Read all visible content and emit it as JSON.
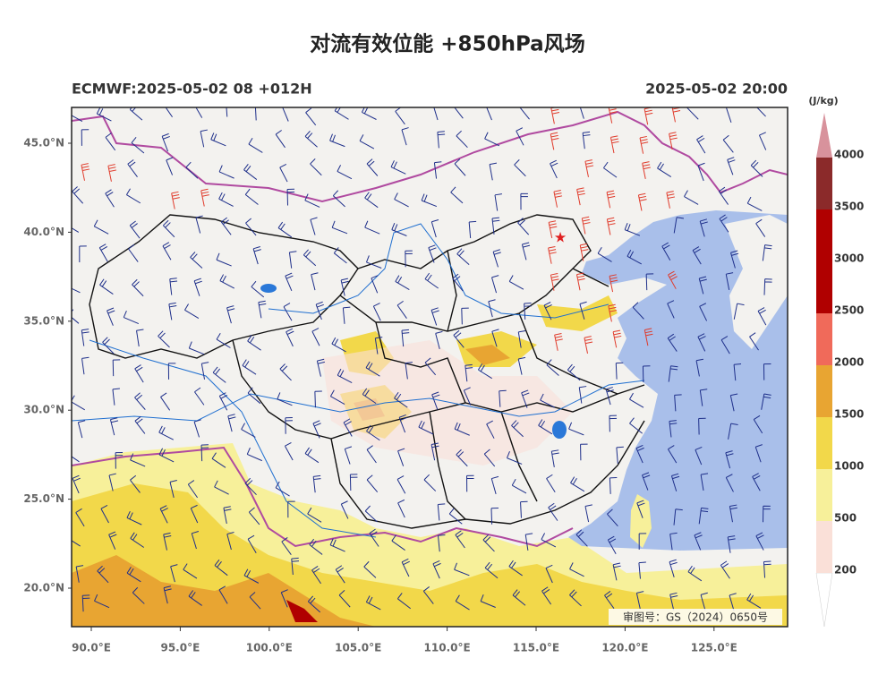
{
  "title": "对流有效位能 +850hPa风场",
  "subtitle_left": "ECMWF:2025-05-02 08 +012H",
  "subtitle_right": "2025-05-02 20:00",
  "lat_labels": [
    "45.0°N",
    "40.0°N",
    "35.0°N",
    "30.0°N",
    "25.0°N",
    "20.0°N"
  ],
  "lon_labels": [
    "90.0°E",
    "95.0°E",
    "100.0°E",
    "105.0°E",
    "110.0°E",
    "115.0°E",
    "120.0°E",
    "125.0°E"
  ],
  "colorbar": {
    "unit": "(J/kg)",
    "ticks": [
      200,
      500,
      1000,
      1500,
      2000,
      2500,
      3000,
      3500,
      4000
    ],
    "colors": [
      "#ffffff",
      "#fae0d8",
      "#f7f09a",
      "#f2d84a",
      "#e8a532",
      "#f06a5a",
      "#b00000",
      "#b00000",
      "#8b2a2a",
      "#d8929c"
    ]
  },
  "review_number": "审图号：GS（2024）0650号"
}
